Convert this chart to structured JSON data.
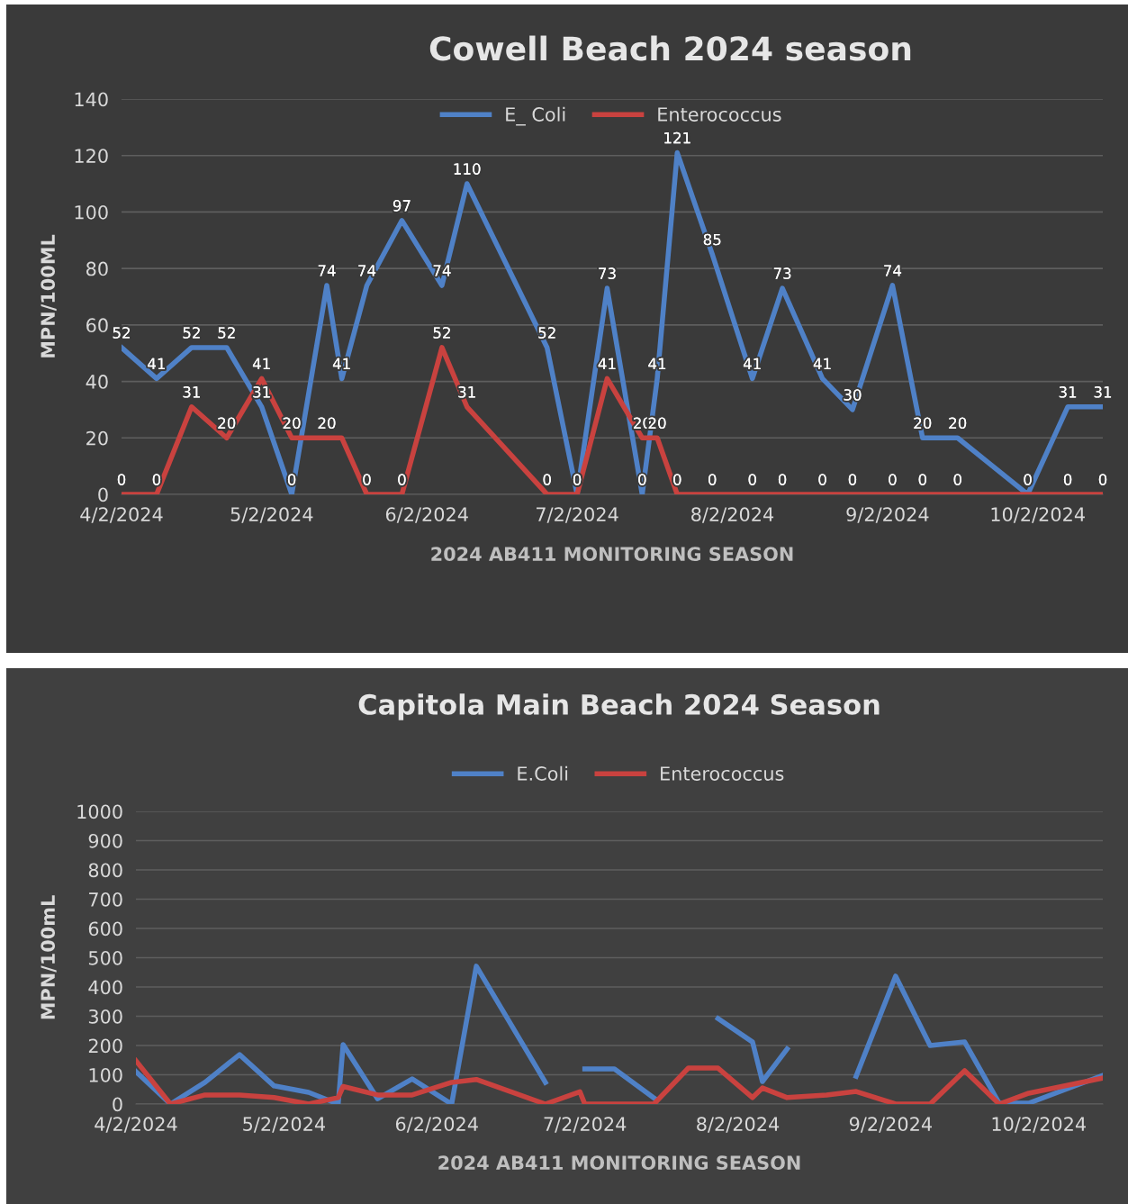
{
  "chart_data": [
    {
      "type": "line",
      "title": "Cowell Beach 2024 season",
      "xlabel": "2024 AB411 MONITORING SEASON",
      "ylabel": "MPN/100ML",
      "x": [
        "2024-04-02",
        "2024-04-09",
        "2024-04-16",
        "2024-04-23",
        "2024-04-30",
        "2024-05-06",
        "2024-05-13",
        "2024-05-16",
        "2024-05-21",
        "2024-05-28",
        "2024-06-05",
        "2024-06-10",
        "2024-06-26",
        "2024-07-02",
        "2024-07-08",
        "2024-07-15",
        "2024-07-18",
        "2024-07-22",
        "2024-07-29",
        "2024-08-06",
        "2024-08-12",
        "2024-08-20",
        "2024-08-26",
        "2024-09-03",
        "2024-09-09",
        "2024-09-16",
        "2024-09-30",
        "2024-10-08",
        "2024-10-15"
      ],
      "series": [
        {
          "name": "E_ Coli",
          "color": "#4f81c7",
          "values": [
            52,
            41,
            52,
            52,
            31,
            0,
            74,
            41,
            74,
            97,
            74,
            110,
            52,
            0,
            73,
            0,
            41,
            121,
            85,
            41,
            73,
            41,
            30,
            74,
            20,
            20,
            0,
            31,
            31
          ],
          "value_labels": [
            "52",
            "41",
            "52",
            "52",
            "31",
            "0",
            "74",
            "41",
            "74",
            "97",
            "74",
            "110",
            "52",
            "0",
            "73",
            "0",
            "41",
            "121",
            "85",
            "41",
            "73",
            "41",
            "30",
            "74",
            "20",
            "20",
            "0",
            "31",
            "31"
          ]
        },
        {
          "name": "Enterococcus",
          "color": "#c9423f",
          "values": [
            0,
            0,
            31,
            20,
            41,
            20,
            20,
            20,
            0,
            0,
            52,
            31,
            0,
            0,
            41,
            20,
            20,
            0,
            0,
            0,
            0,
            0,
            0,
            0,
            0,
            0,
            0,
            0,
            0
          ],
          "value_labels": [
            "0",
            "0",
            "31",
            "20",
            "41",
            "20",
            "20",
            null,
            "0",
            "0",
            "52",
            "31",
            "0",
            "0",
            "41",
            "20",
            "20",
            "0",
            "0",
            "0",
            "0",
            "0",
            "0",
            "0",
            "0",
            "0",
            "0",
            "0",
            "0"
          ]
        }
      ],
      "xlim": [
        "2024-04-02",
        "2024-10-15"
      ],
      "xticks": [
        {
          "value": "2024-04-02",
          "label": "4/2/2024"
        },
        {
          "value": "2024-05-02",
          "label": "5/2/2024"
        },
        {
          "value": "2024-06-02",
          "label": "6/2/2024"
        },
        {
          "value": "2024-07-02",
          "label": "7/2/2024"
        },
        {
          "value": "2024-08-02",
          "label": "8/2/2024"
        },
        {
          "value": "2024-09-02",
          "label": "9/2/2024"
        },
        {
          "value": "2024-10-02",
          "label": "10/2/2024"
        }
      ],
      "ylim": [
        0,
        140
      ],
      "yticks": [
        0,
        20,
        40,
        60,
        80,
        100,
        120,
        140
      ],
      "grid": "y",
      "legend": "top",
      "marker": "none",
      "line_style": "solid"
    },
    {
      "type": "line",
      "title": "Capitola Main Beach 2024 Season",
      "xlabel": "2024 AB411 MONITORING SEASON",
      "ylabel": "MPN/100mL",
      "x": [
        "2024-04-02",
        "2024-04-09",
        "2024-04-16",
        "2024-04-23",
        "2024-04-30",
        "2024-05-07",
        "2024-05-13",
        "2024-05-14",
        "2024-05-21",
        "2024-05-28",
        "2024-06-05",
        "2024-06-10",
        "2024-06-24",
        "2024-07-01",
        "2024-07-02",
        "2024-07-08",
        "2024-07-16",
        "2024-07-23",
        "2024-07-29",
        "2024-08-05",
        "2024-08-07",
        "2024-08-12",
        "2024-08-20",
        "2024-08-26",
        "2024-09-03",
        "2024-09-10",
        "2024-09-17",
        "2024-09-24",
        "2024-09-30",
        "2024-10-15"
      ],
      "series": [
        {
          "name": "E.Coli",
          "color": "#4f81c7",
          "values": [
            111,
            0,
            74,
            169,
            62,
            40,
            0,
            203,
            18,
            86,
            0,
            471,
            74,
            null,
            120,
            120,
            21,
            null,
            292,
            212,
            77,
            188,
            null,
            95,
            437,
            200,
            212,
            3,
            3,
            98
          ]
        },
        {
          "name": "Enterococcus",
          "color": "#c9423f",
          "values": [
            148,
            0,
            31,
            31,
            22,
            0,
            22,
            60,
            31,
            31,
            74,
            84,
            0,
            42,
            0,
            0,
            0,
            123,
            123,
            22,
            55,
            22,
            31,
            43,
            0,
            0,
            114,
            0,
            37,
            89
          ]
        }
      ],
      "xlim": [
        "2024-04-02",
        "2024-10-15"
      ],
      "xticks": [
        {
          "value": "2024-04-02",
          "label": "4/2/2024"
        },
        {
          "value": "2024-05-02",
          "label": "5/2/2024"
        },
        {
          "value": "2024-06-02",
          "label": "6/2/2024"
        },
        {
          "value": "2024-07-02",
          "label": "7/2/2024"
        },
        {
          "value": "2024-08-02",
          "label": "8/2/2024"
        },
        {
          "value": "2024-09-02",
          "label": "9/2/2024"
        },
        {
          "value": "2024-10-02",
          "label": "10/2/2024"
        }
      ],
      "ylim": [
        0,
        1000
      ],
      "yticks": [
        0,
        100,
        200,
        300,
        400,
        500,
        600,
        700,
        800,
        900,
        1000
      ],
      "grid": "y",
      "legend": "top",
      "marker": "none",
      "line_style": "solid"
    }
  ]
}
